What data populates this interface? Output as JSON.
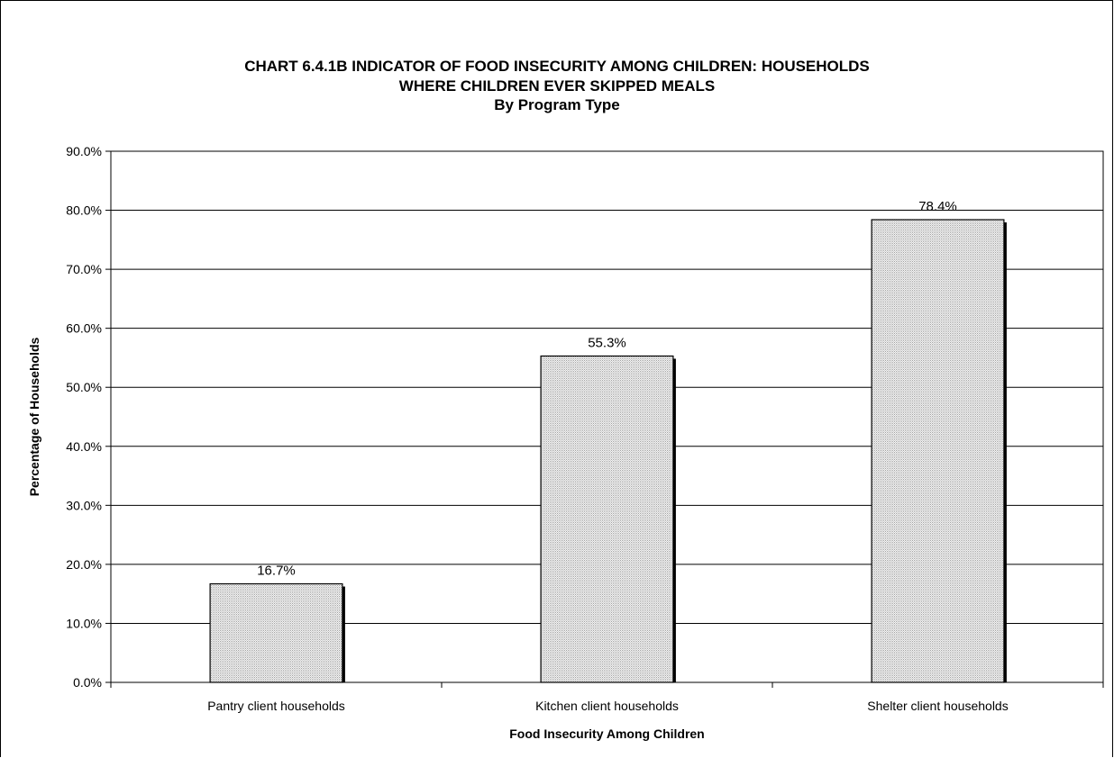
{
  "title_line1": "CHART 6.4.1B    INDICATOR OF FOOD INSECURITY AMONG CHILDREN:  HOUSEHOLDS",
  "title_line2": "WHERE CHILDREN EVER SKIPPED MEALS",
  "title_line3": "By Program Type",
  "chart_data": {
    "type": "bar",
    "title": "CHART 6.4.1B    INDICATOR OF FOOD INSECURITY AMONG CHILDREN:  HOUSEHOLDS WHERE CHILDREN EVER SKIPPED MEALS",
    "subtitle": "By Program Type",
    "xlabel": "Food Insecurity Among Children",
    "ylabel": "Percentage of Households",
    "categories": [
      "Pantry client households",
      "Kitchen client households",
      "Shelter client households"
    ],
    "values": [
      16.7,
      55.3,
      78.4
    ],
    "value_labels": [
      "16.7%",
      "55.3%",
      "78.4%"
    ],
    "ylim": [
      0,
      90
    ],
    "yticks": [
      "0.0%",
      "10.0%",
      "20.0%",
      "30.0%",
      "40.0%",
      "50.0%",
      "60.0%",
      "70.0%",
      "80.0%",
      "90.0%"
    ],
    "grid": true,
    "legend": "none",
    "bar_color": "#e6e6e6"
  }
}
